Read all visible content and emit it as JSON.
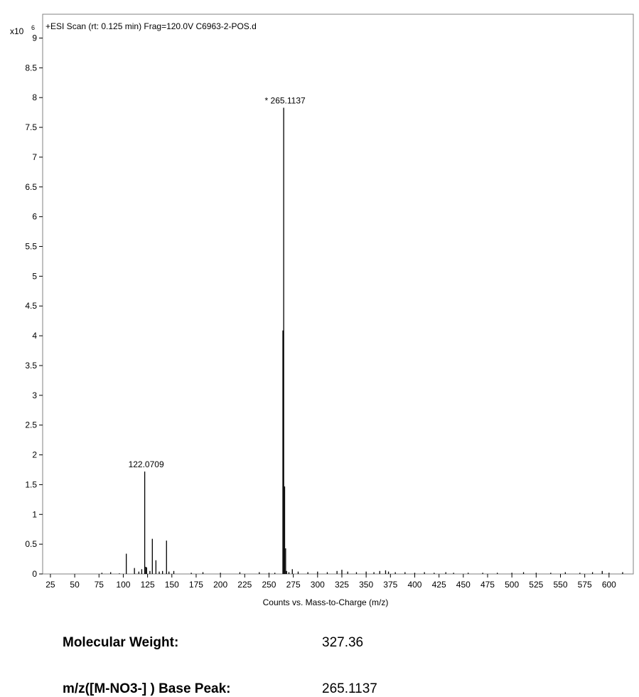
{
  "chart_data": {
    "type": "bar",
    "title": "+ESI Scan (rt: 0.125 min) Frag=120.0V C6963-2-POS.d",
    "xlabel": "Counts vs. Mass-to-Charge (m/z)",
    "y_multiplier_label": "x10",
    "y_multiplier_exponent": "6",
    "xlim": [
      17,
      625
    ],
    "ylim": [
      0,
      9.4
    ],
    "x_ticks": [
      25,
      50,
      75,
      100,
      125,
      150,
      175,
      200,
      225,
      250,
      275,
      300,
      325,
      350,
      375,
      400,
      425,
      450,
      475,
      500,
      525,
      550,
      575,
      600
    ],
    "y_ticks": [
      0,
      0.5,
      1,
      1.5,
      2,
      2.5,
      3,
      3.5,
      4,
      4.5,
      5,
      5.5,
      6,
      6.5,
      7,
      7.5,
      8,
      8.5,
      9
    ],
    "y_tick_labels": [
      "0",
      "0.5",
      "1",
      "1.5",
      "2",
      "2.5",
      "3",
      "3.5",
      "4",
      "4.5",
      "5",
      "5.5",
      "6",
      "6.5",
      "7",
      "7.5",
      "8",
      "8.5",
      "9"
    ],
    "grid": false,
    "series": [
      {
        "x": [
          78,
          87,
          96,
          103.1,
          111.5,
          116,
          119,
          122.0709,
          123.1,
          124,
          127.4,
          129.9,
          133.6,
          137,
          140.4,
          144.5,
          147,
          152,
          170,
          182,
          200,
          220,
          240,
          250,
          256,
          264.3,
          265.1137,
          266.1,
          267.1,
          268.1,
          270.5,
          274,
          280,
          290,
          300,
          310,
          320,
          325,
          331,
          340,
          350,
          358,
          364,
          370,
          373,
          380,
          390,
          400,
          410,
          420,
          432,
          440,
          455,
          470,
          485,
          500,
          512,
          525,
          540,
          555,
          570,
          583,
          593,
          600,
          614
        ],
        "values": [
          0.02,
          0.03,
          0.01,
          0.34,
          0.1,
          0.04,
          0.08,
          1.72,
          0.12,
          0.11,
          0.05,
          0.59,
          0.23,
          0.04,
          0.05,
          0.56,
          0.04,
          0.05,
          0.02,
          0.03,
          0.02,
          0.03,
          0.03,
          0.02,
          0.02,
          4.09,
          7.83,
          1.47,
          0.43,
          0.05,
          0.03,
          0.08,
          0.04,
          0.03,
          0.04,
          0.03,
          0.05,
          0.07,
          0.04,
          0.03,
          0.04,
          0.03,
          0.05,
          0.06,
          0.04,
          0.03,
          0.03,
          0.02,
          0.03,
          0.02,
          0.03,
          0.02,
          0.02,
          0.02,
          0.02,
          0.02,
          0.03,
          0.02,
          0.02,
          0.03,
          0.02,
          0.03,
          0.05,
          0.02,
          0.03
        ]
      }
    ],
    "annotations": [
      {
        "text": "* 265.1137",
        "x": 265.1137,
        "y": 7.83
      },
      {
        "text": "122.0709",
        "x": 122.0709,
        "y": 1.72
      }
    ]
  },
  "info": [
    {
      "label": "Molecular Weight:",
      "value": "327.36"
    },
    {
      "label": "m/z([M-NO3-] ) Base Peak:",
      "value": "265.1137"
    }
  ]
}
